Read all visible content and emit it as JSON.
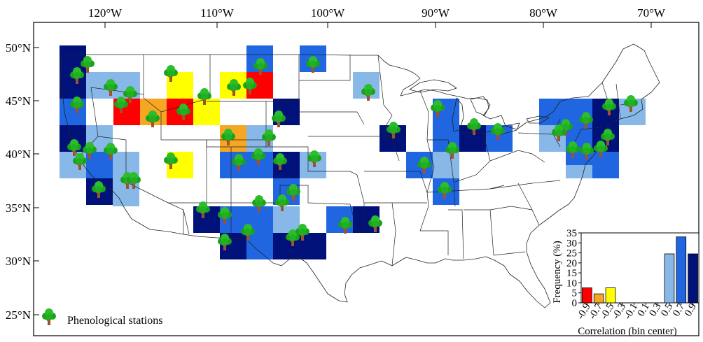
{
  "map": {
    "lon_ticks": [
      "120°W",
      "110°W",
      "100°W",
      "90°W",
      "80°W",
      "70°W"
    ],
    "lat_ticks": [
      "50°N",
      "45°N",
      "40°N",
      "35°N",
      "30°N",
      "25°N"
    ],
    "legend_label": "Phenological stations",
    "legend_icon": "tree-icon"
  },
  "colors": {
    "bin_-0.9": "#ff0000",
    "bin_-0.7": "#f5a623",
    "bin_-0.5": "#ffff00",
    "bin_0.5": "#87b8e8",
    "bin_0.7": "#1f66e0",
    "bin_0.9": "#00127a"
  },
  "chart_data": {
    "type": "bar",
    "xlabel": "Correlation (bin center)",
    "ylabel": "Frequency (%)",
    "categories": [
      "-0.9",
      "-0.7",
      "-0.5",
      "-0.3",
      "-0.1",
      "0.1",
      "0.3",
      "0.5",
      "0.7",
      "0.9"
    ],
    "values": [
      7.5,
      4.5,
      7.5,
      0,
      0,
      0,
      0,
      24.5,
      33,
      24.5
    ],
    "ylim": [
      0,
      35
    ],
    "yticks": [
      "0",
      "5",
      "10",
      "15",
      "20",
      "25",
      "30",
      "35"
    ],
    "bar_colors": [
      "#ff0000",
      "#f5a623",
      "#ffff00",
      "",
      "",
      "",
      "",
      "#87b8e8",
      "#1f66e0",
      "#00127a"
    ]
  }
}
